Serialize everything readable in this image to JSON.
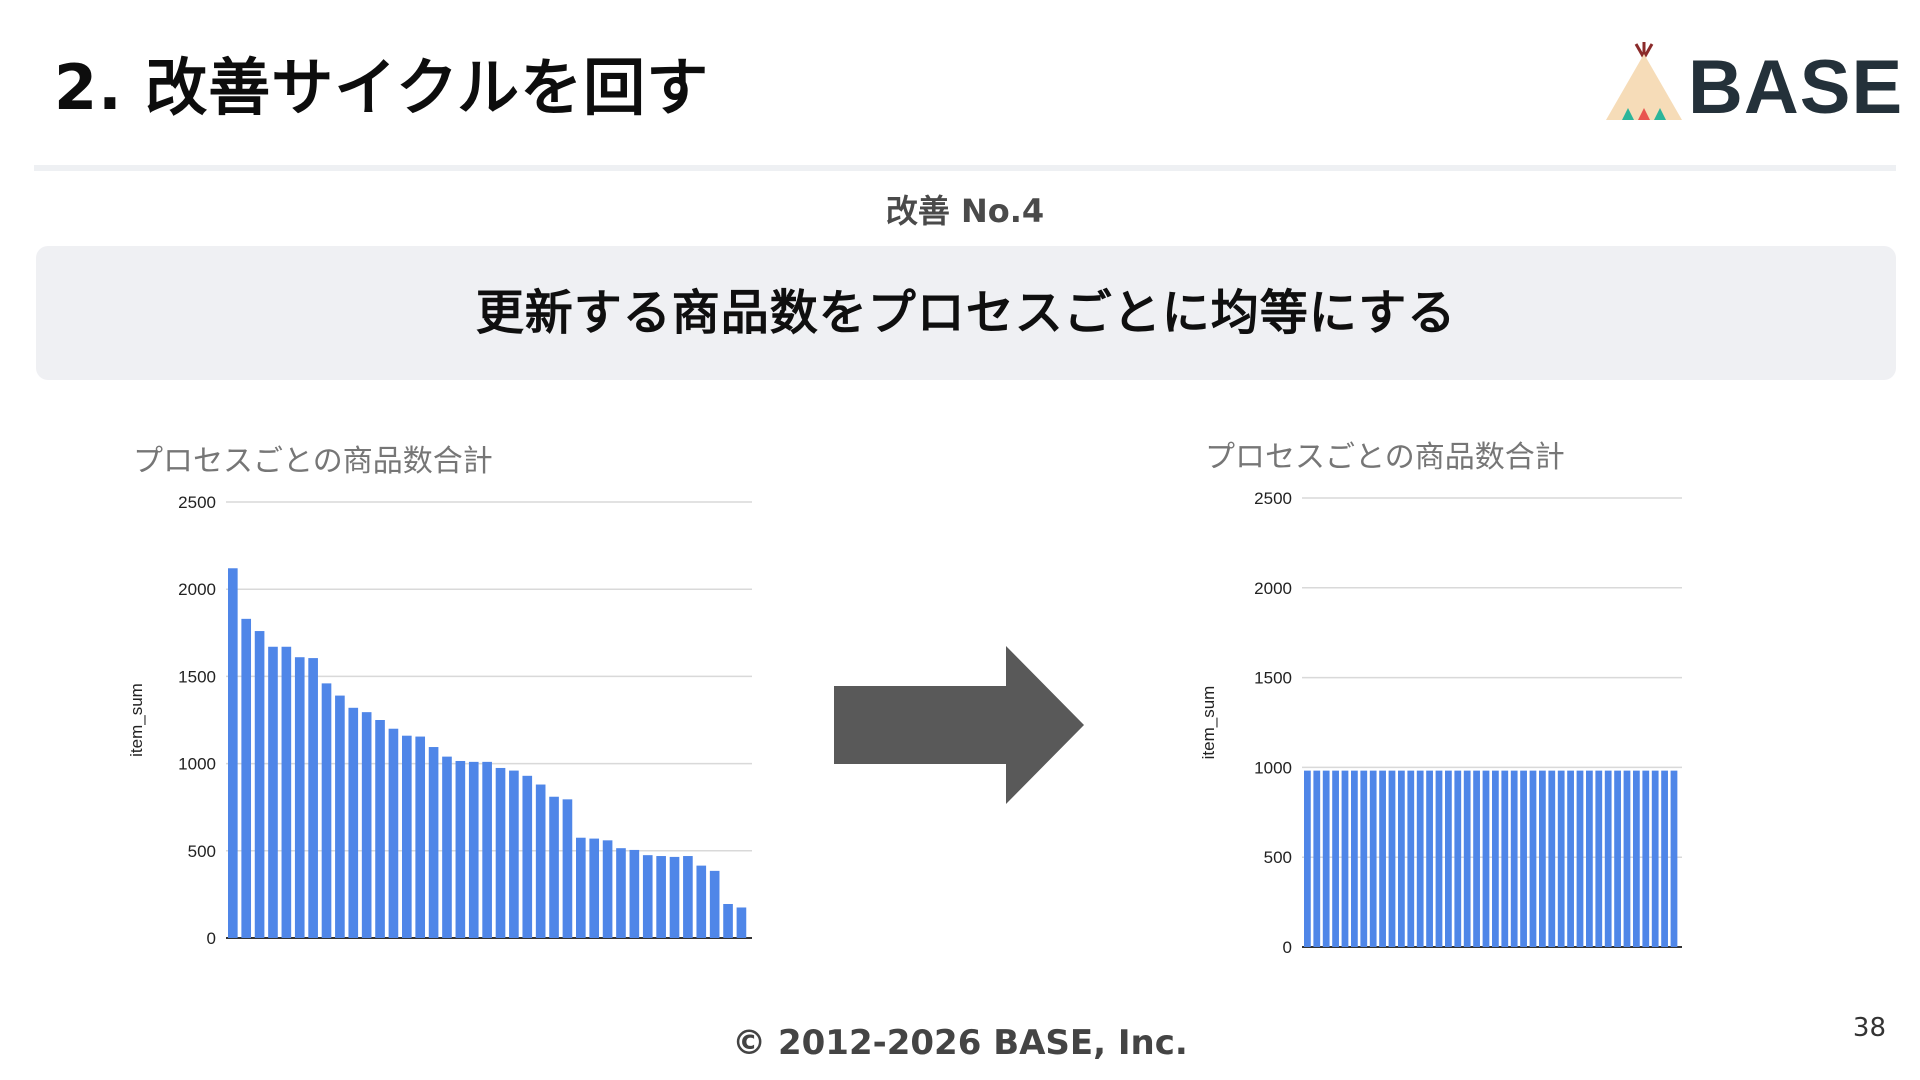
{
  "slide": {
    "title": "2. 改善サイクルを回す",
    "logo_text": "BASE",
    "subheading": "改善 No.4",
    "headline": "更新する商品数をプロセスごとに均等にする",
    "copyright": "© 2012-2026 BASE, Inc.",
    "page_number": "38"
  },
  "colors": {
    "bar": "#4f86e8",
    "arrow": "#595959",
    "grid": "#d9d9d9",
    "logo_text": "#24313a",
    "tent": "#f6dcb8",
    "tent_triangles": [
      "#e9544f",
      "#f2c12e",
      "#2bb59a"
    ]
  },
  "icons": {
    "logo": "base-tent-logo-icon",
    "arrow": "right-arrow-icon"
  },
  "chart_data": [
    {
      "type": "bar",
      "title": "プロセスごとの商品数合計",
      "xlabel": "",
      "ylabel": "item_sum",
      "ylim": [
        0,
        2500
      ],
      "yticks": [
        "2500",
        "2000",
        "1500",
        "1000",
        "500",
        "0"
      ],
      "grid": true,
      "values": [
        2120,
        1830,
        1760,
        1670,
        1670,
        1610,
        1605,
        1460,
        1390,
        1320,
        1295,
        1250,
        1200,
        1160,
        1155,
        1095,
        1040,
        1015,
        1010,
        1010,
        975,
        960,
        930,
        880,
        810,
        795,
        575,
        570,
        560,
        515,
        505,
        475,
        470,
        465,
        470,
        415,
        385,
        195,
        175
      ]
    },
    {
      "type": "bar",
      "title": "プロセスごとの商品数合計",
      "xlabel": "",
      "ylabel": "item_sum",
      "ylim": [
        0,
        2500
      ],
      "yticks": [
        "2500",
        "2000",
        "1500",
        "1000",
        "500",
        "0"
      ],
      "grid": true,
      "values": [
        982,
        982,
        982,
        982,
        982,
        982,
        982,
        982,
        982,
        982,
        982,
        982,
        982,
        982,
        982,
        982,
        982,
        982,
        982,
        982,
        982,
        982,
        982,
        982,
        982,
        982,
        982,
        982,
        982,
        982,
        982,
        982,
        982,
        982,
        982,
        982,
        982,
        982,
        982,
        982
      ]
    }
  ]
}
